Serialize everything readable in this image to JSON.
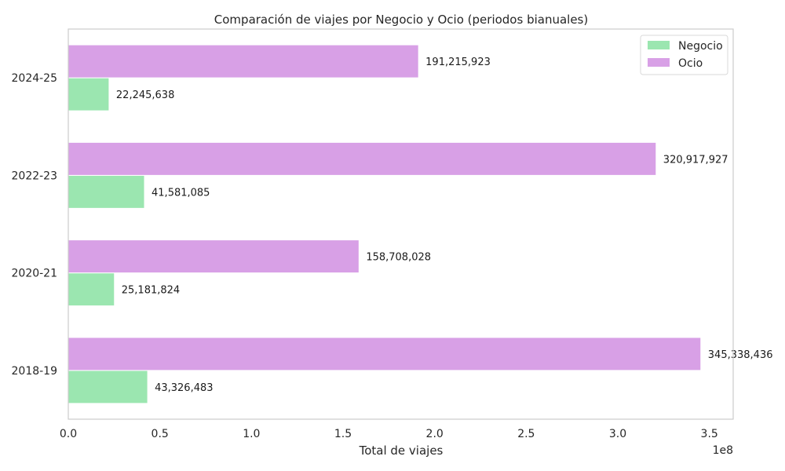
{
  "chart_data": {
    "type": "bar",
    "orientation": "horizontal",
    "title": "Comparación de viajes por Negocio y Ocio (periodos bianuales)",
    "xlabel": "Total de viajes",
    "ylabel": "",
    "x_scale_label": "1e8",
    "xlim": [
      0,
      3.63
    ],
    "x_ticks": [
      0,
      0.5,
      1.0,
      1.5,
      2.0,
      2.5,
      3.0,
      3.5
    ],
    "x_tick_labels": [
      "0.0",
      "0.5",
      "1.0",
      "1.5",
      "2.0",
      "2.5",
      "3.0",
      "3.5"
    ],
    "categories": [
      "2018-19",
      "2020-21",
      "2022-23",
      "2024-25"
    ],
    "series": [
      {
        "name": "Negocio",
        "color": "#9be6b0",
        "values": [
          43326483,
          25181824,
          41581085,
          22245638
        ],
        "labels": [
          "43,326,483",
          "25,181,824",
          "41,581,085",
          "22,245,638"
        ]
      },
      {
        "name": "Ocio",
        "color": "#d8a0e6",
        "values": [
          345338436,
          158708028,
          320917927,
          191215923
        ],
        "labels": [
          "345,338,436",
          "158,708,028",
          "320,917,927",
          "191,215,923"
        ]
      }
    ],
    "legend_position": "top-right",
    "grid": false
  }
}
